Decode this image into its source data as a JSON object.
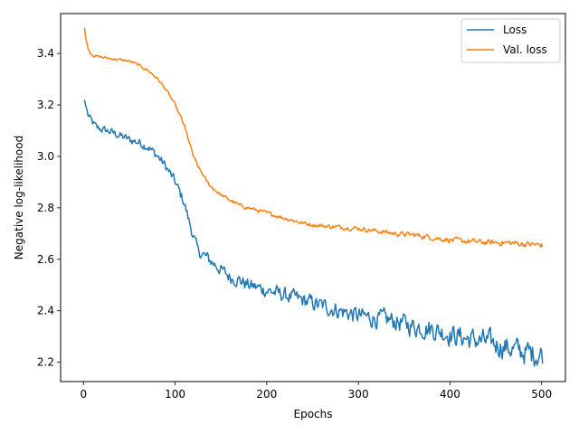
{
  "chart_data": {
    "type": "line",
    "xlabel": "Epochs",
    "ylabel": "Negative log-likelihood",
    "xlim": [
      -24.95,
      525.95
    ],
    "ylim": [
      2.125,
      3.555
    ],
    "xticks": [
      0,
      100,
      200,
      300,
      400,
      500
    ],
    "yticks": [
      2.2,
      2.4,
      2.6,
      2.8,
      3.0,
      3.2,
      3.4
    ],
    "ytick_labels": [
      "2.2",
      "2.4",
      "2.6",
      "2.8",
      "3.0",
      "3.2",
      "3.4"
    ],
    "grid": false,
    "legend_position": "top-right",
    "x_start": 1,
    "x_end": 501,
    "series": [
      {
        "name": "Loss",
        "color": "#1f77b4",
        "x": [
          1,
          5,
          10,
          15,
          20,
          30,
          40,
          50,
          60,
          70,
          75,
          80,
          90,
          100,
          105,
          110,
          115,
          120,
          125,
          130,
          140,
          150,
          160,
          170,
          180,
          190,
          200,
          220,
          240,
          260,
          280,
          300,
          320,
          340,
          360,
          380,
          400,
          420,
          440,
          460,
          480,
          490,
          500,
          501
        ],
        "values": [
          3.22,
          3.16,
          3.13,
          3.11,
          3.105,
          3.095,
          3.08,
          3.065,
          3.055,
          3.04,
          3.02,
          3.005,
          2.96,
          2.9,
          2.86,
          2.82,
          2.75,
          2.69,
          2.63,
          2.62,
          2.59,
          2.56,
          2.53,
          2.52,
          2.5,
          2.49,
          2.48,
          2.46,
          2.44,
          2.42,
          2.4,
          2.38,
          2.37,
          2.36,
          2.34,
          2.33,
          2.31,
          2.29,
          2.28,
          2.26,
          2.24,
          2.235,
          2.23,
          2.23
        ],
        "noise": 0.012
      },
      {
        "name": "Val. loss",
        "color": "#ff7f0e",
        "x": [
          1,
          3,
          5,
          8,
          12,
          20,
          30,
          40,
          50,
          60,
          70,
          80,
          90,
          100,
          105,
          110,
          115,
          120,
          125,
          130,
          135,
          140,
          150,
          160,
          170,
          180,
          190,
          200,
          220,
          240,
          260,
          280,
          300,
          320,
          340,
          360,
          380,
          400,
          420,
          440,
          460,
          480,
          500,
          501
        ],
        "values": [
          3.5,
          3.45,
          3.42,
          3.4,
          3.39,
          3.385,
          3.38,
          3.375,
          3.37,
          3.355,
          3.335,
          3.305,
          3.26,
          3.2,
          3.16,
          3.12,
          3.06,
          3.0,
          2.96,
          2.93,
          2.9,
          2.88,
          2.85,
          2.83,
          2.81,
          2.8,
          2.79,
          2.78,
          2.76,
          2.74,
          2.73,
          2.725,
          2.72,
          2.71,
          2.7,
          2.695,
          2.685,
          2.675,
          2.67,
          2.665,
          2.665,
          2.66,
          2.655,
          2.65
        ],
        "noise": 0.004
      }
    ]
  }
}
